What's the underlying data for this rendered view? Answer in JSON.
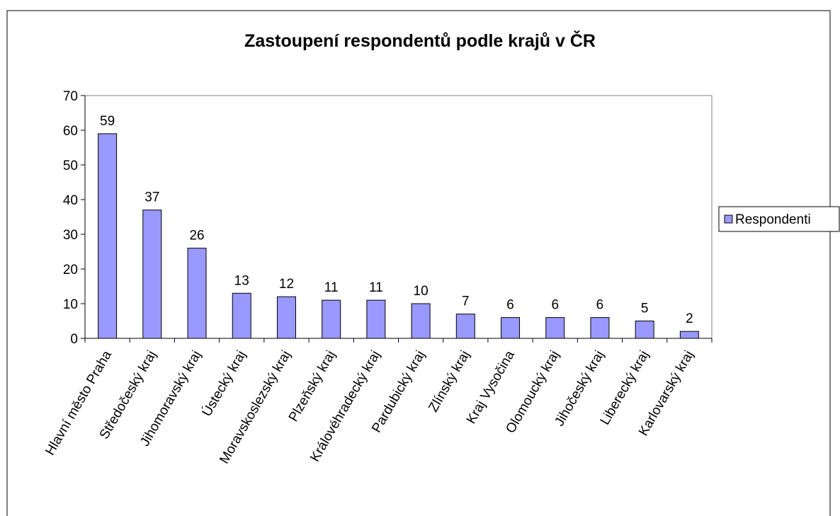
{
  "chart_data": {
    "type": "bar",
    "title": "Zastoupení respondentů podle krajů v ČR",
    "categories": [
      "Hlavní město Praha",
      "Středočeský kraj",
      "Jihomoravský kraj",
      "Ústecký kraj",
      "Moravskoslezský kraj",
      "Plzeňský kraj",
      "Královéhradecký kraj",
      "Pardubický kraj",
      "Zlínský kraj",
      "Kraj Vysočina",
      "Olomoucký kraj",
      "Jihočeský kraj",
      "Liberecký kraj",
      "Karlovarský kraj"
    ],
    "series": [
      {
        "name": "Respondenti",
        "color": "#9999ff",
        "values": [
          59,
          37,
          26,
          13,
          12,
          11,
          11,
          10,
          7,
          6,
          6,
          6,
          5,
          2
        ]
      }
    ],
    "ylim": [
      0,
      70
    ],
    "yticks": [
      0,
      10,
      20,
      30,
      40,
      50,
      60,
      70
    ],
    "legend": "right"
  }
}
